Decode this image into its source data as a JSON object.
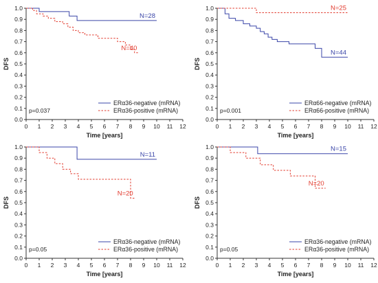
{
  "colors": {
    "negative_series": "#3a45a8",
    "positive_series": "#e23b2e",
    "axis": "#333333"
  },
  "chart_data": [
    {
      "type": "line",
      "panel": "top-left",
      "xlabel": "Time [years]",
      "ylabel": "DFS",
      "xlim": [
        0,
        12
      ],
      "ylim": [
        0,
        1
      ],
      "xticks": [
        "0",
        "1",
        "2",
        "3",
        "4",
        "5",
        "6",
        "7",
        "8",
        "9",
        "10",
        "11",
        "12"
      ],
      "yticks": [
        "0.0",
        "0.1",
        "0.2",
        "0.3",
        "0.4",
        "0.5",
        "0.6",
        "0.7",
        "0.8",
        "0.9",
        "1.0"
      ],
      "grid": false,
      "legend_position": "bottom-right",
      "p_value": "p=0.037",
      "series": [
        {
          "name": "ERα36-negative (mRNA)",
          "style": "solid",
          "color_key": "negative_series",
          "n_label": "N=28",
          "x": [
            0,
            1.0,
            3.3,
            3.9,
            10.0
          ],
          "y": [
            1.0,
            0.97,
            0.93,
            0.89,
            0.89
          ]
        },
        {
          "name": "ERα36-positive (mRNA)",
          "style": "dashed",
          "color_key": "positive_series",
          "n_label": "N=40",
          "x": [
            0,
            0.5,
            0.8,
            1.3,
            1.7,
            2.2,
            2.8,
            3.2,
            3.6,
            4.0,
            4.5,
            5.5,
            7.0,
            7.6,
            8.0,
            8.3,
            8.6
          ],
          "y": [
            1.0,
            0.98,
            0.95,
            0.93,
            0.91,
            0.88,
            0.86,
            0.83,
            0.8,
            0.78,
            0.76,
            0.73,
            0.7,
            0.67,
            0.63,
            0.6,
            0.6
          ]
        }
      ]
    },
    {
      "type": "line",
      "panel": "top-right",
      "xlabel": "Time [years]",
      "ylabel": "DFS",
      "xlim": [
        0,
        12
      ],
      "ylim": [
        0,
        1
      ],
      "xticks": [
        "0",
        "1",
        "2",
        "3",
        "4",
        "5",
        "6",
        "7",
        "8",
        "9",
        "10",
        "11",
        "12"
      ],
      "yticks": [
        "0.0",
        "0.1",
        "0.2",
        "0.3",
        "0.4",
        "0.5",
        "0.6",
        "0.7",
        "0.8",
        "0.9",
        "1.0"
      ],
      "grid": false,
      "legend_position": "bottom-right",
      "p_value": "p=0.001",
      "series": [
        {
          "name": "ERα66-negative (mRNA)",
          "style": "solid",
          "color_key": "negative_series",
          "n_label": "N=44",
          "x": [
            0,
            0.6,
            0.9,
            1.4,
            2.0,
            2.5,
            3.0,
            3.3,
            3.6,
            3.9,
            4.2,
            4.6,
            5.5,
            7.5,
            8.0,
            10.0
          ],
          "y": [
            1.0,
            0.95,
            0.91,
            0.89,
            0.86,
            0.84,
            0.82,
            0.79,
            0.77,
            0.74,
            0.72,
            0.7,
            0.68,
            0.64,
            0.56,
            0.56
          ]
        },
        {
          "name": "ERα66-positive (mRNA)",
          "style": "dashed",
          "color_key": "positive_series",
          "n_label": "N=25",
          "x": [
            0,
            3.0,
            10.0
          ],
          "y": [
            1.0,
            0.96,
            0.96
          ]
        }
      ]
    },
    {
      "type": "line",
      "panel": "bottom-left",
      "xlabel": "Time [years]",
      "ylabel": "DFS",
      "xlim": [
        0,
        12
      ],
      "ylim": [
        0,
        1
      ],
      "xticks": [
        "0",
        "1",
        "2",
        "3",
        "4",
        "5",
        "6",
        "7",
        "8",
        "9",
        "10",
        "11",
        "12"
      ],
      "yticks": [
        "0.0",
        "0.1",
        "0.2",
        "0.3",
        "0.4",
        "0.5",
        "0.6",
        "0.7",
        "0.8",
        "0.9",
        "1.0"
      ],
      "grid": false,
      "legend_position": "bottom-right",
      "p_value": "p=0.05",
      "series": [
        {
          "name": "ERα36-negative (mRNA)",
          "style": "solid",
          "color_key": "negative_series",
          "n_label": "N=11",
          "x": [
            0,
            3.9,
            10.0
          ],
          "y": [
            1.0,
            0.89,
            0.89
          ]
        },
        {
          "name": "ERα36-positive (mRNA)",
          "style": "dashed",
          "color_key": "positive_series",
          "n_label": "N=20",
          "x": [
            0,
            1.0,
            1.6,
            2.2,
            2.8,
            3.4,
            4.0,
            8.0,
            8.3
          ],
          "y": [
            1.0,
            0.95,
            0.9,
            0.85,
            0.8,
            0.76,
            0.71,
            0.54,
            0.54
          ]
        }
      ]
    },
    {
      "type": "line",
      "panel": "bottom-right",
      "xlabel": "Time [years]",
      "ylabel": "DFS",
      "xlim": [
        0,
        12
      ],
      "ylim": [
        0,
        1
      ],
      "xticks": [
        "0",
        "1",
        "2",
        "3",
        "4",
        "5",
        "6",
        "7",
        "8",
        "9",
        "10",
        "11",
        "12"
      ],
      "yticks": [
        "0.0",
        "0.1",
        "0.2",
        "0.3",
        "0.4",
        "0.5",
        "0.6",
        "0.7",
        "0.8",
        "0.9",
        "1.0"
      ],
      "grid": false,
      "legend_position": "bottom-right",
      "p_value": "p=0.05",
      "series": [
        {
          "name": "ERα36-negative (mRNA)",
          "style": "solid",
          "color_key": "negative_series",
          "n_label": "N=15",
          "x": [
            0,
            3.1,
            10.0
          ],
          "y": [
            1.0,
            0.94,
            0.94
          ]
        },
        {
          "name": "ERα36-positive (mRNA)",
          "style": "dashed",
          "color_key": "positive_series",
          "n_label": "N=20",
          "x": [
            0,
            1.0,
            2.2,
            3.3,
            4.3,
            5.6,
            7.5,
            8.3
          ],
          "y": [
            1.0,
            0.95,
            0.9,
            0.84,
            0.79,
            0.74,
            0.63,
            0.63
          ]
        }
      ]
    }
  ]
}
